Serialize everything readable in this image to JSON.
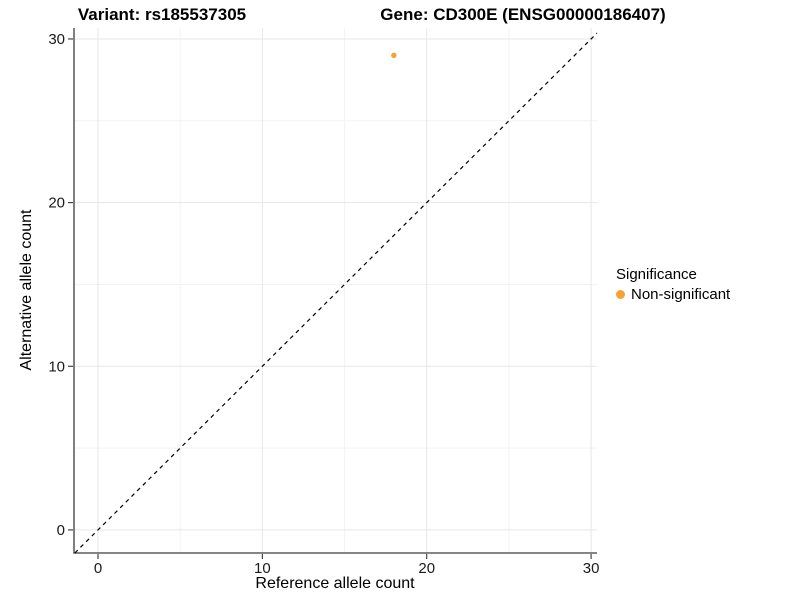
{
  "header": {
    "title_left": "Variant: rs185537305",
    "title_right": "Gene: CD300E (ENSG00000186407)"
  },
  "chart_data": {
    "type": "scatter",
    "title": "Variant: rs185537305  /  Gene: CD300E (ENSG00000186407)",
    "xlabel": "Reference allele count",
    "ylabel": "Alternative allele count",
    "x_ticks": [
      0,
      10,
      20,
      30
    ],
    "y_ticks": [
      0,
      10,
      20,
      30
    ],
    "x_minor_ticks": [
      5,
      15,
      25
    ],
    "y_minor_ticks": [
      5,
      15,
      25
    ],
    "xlim": [
      -1.46,
      30.36
    ],
    "ylim": [
      -1.41,
      30.67
    ],
    "grid": true,
    "legend_position": "right",
    "identity_line": {
      "type": "dashed",
      "equation": "y = x",
      "color": "#000000"
    },
    "points": [
      {
        "x": 18,
        "y": 29,
        "series": "Non-significant",
        "color": "#F89F35",
        "radius": 2.7
      }
    ],
    "legend": {
      "title": "Significance",
      "items": [
        {
          "label": "Non-significant",
          "color": "#F89F35"
        }
      ]
    },
    "colors": {
      "grid_major": "#E7E7E7",
      "grid_minor": "#F3F3F3",
      "axis_line": "#3c3c3c",
      "tick_mark": "#333333",
      "tick_text": "#1a1a1a",
      "background": "#FFFFFF"
    }
  }
}
